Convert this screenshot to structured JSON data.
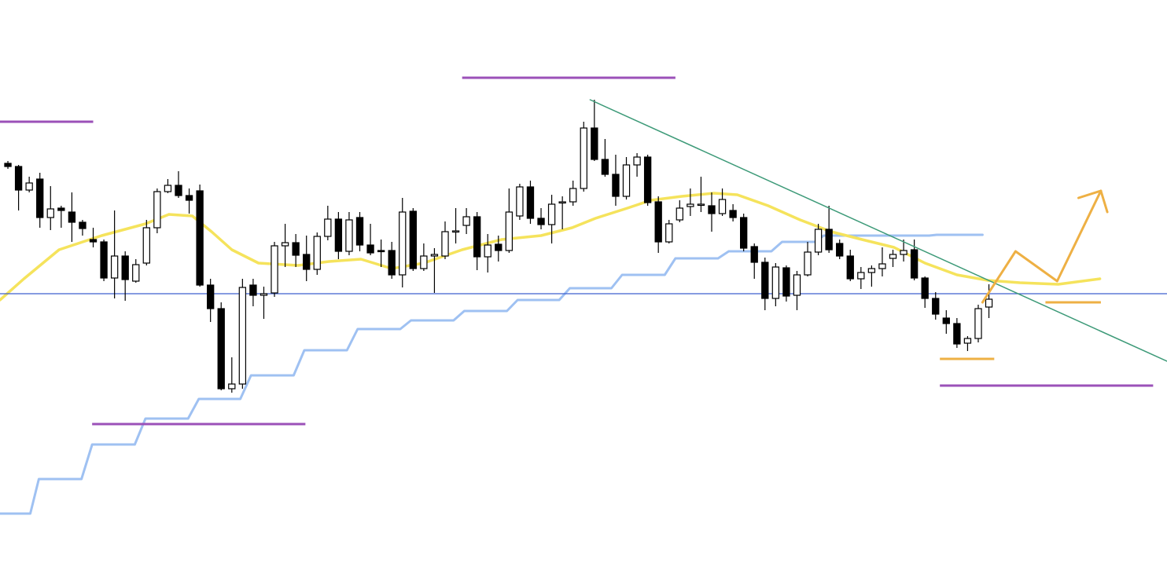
{
  "chart_data": {
    "type": "candlestick",
    "categories": [
      null,
      null,
      null,
      null,
      null,
      null,
      null,
      null,
      null,
      null,
      null,
      null,
      null,
      null,
      null,
      null,
      null,
      null,
      null,
      null,
      null,
      null,
      null,
      null,
      null,
      null,
      null,
      null,
      null,
      null,
      null,
      null,
      null,
      null,
      null,
      null,
      null,
      null,
      null,
      null,
      null,
      null,
      null,
      null,
      null,
      null,
      null,
      null,
      null,
      null,
      null,
      null,
      null,
      null,
      null,
      null,
      null,
      null,
      null,
      null,
      null,
      null,
      null,
      null,
      null,
      null,
      null,
      null,
      null,
      null,
      null,
      null,
      null,
      null,
      null,
      null,
      null,
      null,
      null,
      null,
      null,
      null,
      null,
      null,
      null,
      null,
      null,
      null,
      null,
      null,
      null,
      null,
      null
    ],
    "open": [
      151.4,
      151.0,
      148.0,
      149.4,
      144.5,
      145.7,
      145.2,
      143.9,
      141.7,
      141.4,
      136.8,
      139.6,
      136.4,
      138.7,
      143.2,
      147.8,
      148.6,
      147.3,
      147.9,
      135.9,
      132.9,
      122.7,
      123.3,
      135.9,
      134.6,
      134.9,
      140.9,
      141.3,
      139.8,
      137.9,
      142.1,
      144.3,
      140.2,
      144.5,
      141.0,
      140.3,
      140.3,
      137.2,
      145.3,
      138.0,
      139.6,
      139.6,
      142.7,
      143.5,
      144.6,
      139.5,
      141.1,
      140.3,
      144.7,
      148.4,
      144.4,
      143.6,
      146.4,
      146.5,
      148.2,
      155.9,
      151.9,
      150.0,
      147.2,
      151.2,
      152.2,
      146.5,
      141.4,
      144.2,
      145.9,
      146.1,
      146.0,
      145.0,
      145.4,
      144.5,
      140.8,
      138.8,
      134.2,
      138.1,
      134.6,
      137.2,
      140.1,
      143.0,
      141.2,
      139.6,
      136.7,
      137.5,
      138.0,
      139.3,
      139.8,
      140.4,
      136.8,
      134.2,
      131.7,
      131.0,
      128.5,
      129.1,
      133.1
    ],
    "high": [
      151.7,
      151.2,
      149.7,
      150.2,
      148.5,
      146.0,
      147.7,
      144.2,
      143.2,
      141.7,
      145.4,
      140.2,
      139.2,
      144.2,
      148.2,
      149.4,
      150.4,
      148.2,
      148.7,
      136.7,
      133.7,
      126.7,
      136.7,
      136.7,
      135.7,
      141.4,
      143.7,
      142.4,
      142.2,
      142.6,
      146.0,
      145.2,
      145.2,
      145.2,
      143.7,
      141.7,
      141.4,
      147.0,
      145.7,
      141.2,
      140.6,
      144.0,
      145.7,
      145.7,
      145.2,
      142.4,
      142.2,
      148.2,
      148.8,
      149.2,
      145.7,
      147.4,
      147.2,
      149.2,
      156.7,
      159.5,
      154.5,
      152.5,
      152.2,
      152.7,
      152.5,
      147.2,
      144.2,
      146.7,
      148.2,
      149.7,
      147.7,
      148.2,
      146.2,
      145.0,
      141.2,
      139.4,
      138.7,
      138.4,
      137.7,
      141.4,
      143.7,
      146.0,
      141.7,
      140.4,
      138.2,
      138.4,
      140.7,
      140.4,
      141.7,
      141.7,
      137.0,
      135.0,
      132.7,
      131.7,
      129.4,
      133.4,
      136.0
    ],
    "low": [
      150.7,
      145.4,
      147.7,
      143.2,
      142.9,
      143.2,
      141.4,
      142.2,
      140.7,
      136.4,
      134.2,
      133.9,
      136.2,
      138.4,
      142.5,
      147.6,
      147.0,
      145.0,
      135.7,
      131.2,
      122.5,
      122.2,
      122.7,
      133.2,
      131.6,
      134.4,
      138.2,
      138.2,
      136.4,
      137.2,
      141.6,
      139.2,
      139.7,
      140.2,
      139.7,
      138.2,
      136.7,
      135.6,
      137.7,
      137.7,
      134.9,
      139.2,
      141.2,
      142.4,
      137.8,
      137.5,
      138.9,
      140.0,
      144.2,
      143.7,
      143.0,
      141.2,
      143.0,
      146.0,
      147.8,
      151.7,
      149.7,
      146.0,
      146.8,
      149.7,
      146.0,
      140.0,
      141.2,
      143.9,
      144.7,
      145.2,
      142.7,
      144.7,
      144.0,
      140.2,
      136.7,
      132.7,
      133.2,
      133.8,
      132.7,
      137.0,
      139.7,
      140.0,
      139.2,
      136.4,
      135.4,
      135.7,
      137.0,
      138.2,
      138.9,
      136.5,
      133.0,
      131.5,
      129.7,
      127.9,
      127.5,
      128.6,
      131.7
    ],
    "close": [
      151.0,
      148.0,
      148.9,
      144.5,
      145.6,
      145.4,
      143.9,
      143.1,
      141.4,
      136.8,
      139.6,
      136.6,
      138.5,
      143.2,
      147.8,
      148.6,
      147.3,
      146.7,
      135.9,
      132.9,
      122.7,
      123.3,
      135.6,
      134.6,
      134.8,
      140.9,
      141.3,
      139.7,
      137.9,
      142.1,
      144.3,
      140.2,
      144.2,
      141.0,
      140.0,
      140.2,
      137.2,
      145.2,
      138.0,
      139.6,
      139.8,
      142.7,
      142.8,
      144.6,
      139.5,
      141.0,
      140.3,
      145.2,
      148.4,
      144.4,
      143.6,
      146.2,
      146.5,
      148.2,
      155.9,
      151.9,
      150.0,
      147.2,
      151.2,
      152.2,
      146.4,
      141.4,
      143.7,
      145.7,
      146.2,
      146.2,
      145.0,
      146.8,
      144.5,
      140.6,
      138.8,
      134.2,
      138.2,
      134.5,
      137.2,
      140.1,
      143.0,
      140.4,
      139.6,
      136.7,
      137.5,
      138.0,
      138.6,
      139.8,
      140.3,
      136.8,
      134.2,
      132.2,
      131.0,
      128.4,
      129.1,
      132.9,
      134.1
    ],
    "up_color": "#ffffff",
    "down_color": "#000000",
    "outline_color": "#000000",
    "xlim": [
      -0.74,
      108.7
    ],
    "ylim": [
      100,
      172.2
    ],
    "moving_average": {
      "color": "#f5e35c",
      "x": [
        -0.74,
        1.5,
        4.8,
        8.8,
        12.9,
        15.1,
        17.3,
        19.1,
        21.0,
        23.5,
        27.2,
        30.1,
        33.1,
        36.0,
        39.0,
        42.6,
        46.3,
        50.0,
        52.9,
        55.1,
        58.1,
        60.3,
        63.2,
        66.2,
        68.4,
        71.3,
        74.3,
        77.2,
        80.1,
        83.1,
        86.0,
        89.0,
        91.9,
        94.9,
        98.5,
        102.4
      ],
      "values": [
        134.0,
        136.7,
        140.4,
        142.2,
        143.7,
        144.9,
        144.7,
        142.7,
        140.4,
        138.7,
        138.4,
        138.9,
        139.2,
        138.0,
        138.7,
        140.4,
        141.7,
        142.2,
        143.2,
        144.4,
        145.7,
        146.7,
        147.2,
        147.6,
        147.4,
        146.0,
        144.2,
        142.7,
        141.7,
        140.7,
        138.7,
        137.2,
        136.5,
        136.2,
        136.0,
        136.7
      ]
    },
    "step_line": {
      "color": "#9fc1f2",
      "x": [
        -0.74,
        2.1,
        2.9,
        6.9,
        7.9,
        11.9,
        12.9,
        16.9,
        17.9,
        21.8,
        22.8,
        26.8,
        27.8,
        31.8,
        32.8,
        36.8,
        37.8,
        41.8,
        42.8,
        46.8,
        47.8,
        51.7,
        52.7,
        56.6,
        57.6,
        61.6,
        62.6,
        66.6,
        67.6,
        71.6,
        72.6,
        75.7,
        76.5,
        86.4,
        87.1,
        91.4
      ],
      "values": [
        106.8,
        106.8,
        111.2,
        111.2,
        115.6,
        115.6,
        118.9,
        118.9,
        121.4,
        121.4,
        124.4,
        124.4,
        127.6,
        127.6,
        130.3,
        130.3,
        131.4,
        131.4,
        132.6,
        132.6,
        134.0,
        134.0,
        135.5,
        135.5,
        137.2,
        137.2,
        139.3,
        139.3,
        140.2,
        140.2,
        141.4,
        141.4,
        142.2,
        142.2,
        142.3,
        142.3
      ]
    },
    "levels": [
      {
        "color": "#9b51b8",
        "value": 156.7,
        "xlim": [
          -0.74,
          8.0
        ]
      },
      {
        "color": "#9b51b8",
        "value": 162.3,
        "xlim": [
          42.6,
          62.6
        ]
      },
      {
        "color": "#9b51b8",
        "value": 118.2,
        "xlim": [
          7.9,
          27.9
        ]
      },
      {
        "color": "#9b51b8",
        "value": 123.1,
        "xlim": [
          87.4,
          107.4
        ]
      },
      {
        "color": "#eeb044",
        "value": 126.5,
        "xlim": [
          87.4,
          92.5
        ]
      },
      {
        "color": "#eeb044",
        "value": 133.7,
        "xlim": [
          97.3,
          102.5
        ]
      },
      {
        "color": "#3d5fcf",
        "value": 134.8,
        "xlim": [
          -0.74,
          108.7
        ]
      }
    ],
    "trend_line": {
      "color": "#3d9a78",
      "x": [
        54.6,
        108.7
      ],
      "values": [
        159.5,
        126.2
      ]
    },
    "projection": {
      "color": "#eeb044",
      "x": [
        91.4,
        94.5,
        98.4,
        102.5
      ],
      "values": [
        133.7,
        140.2,
        136.4,
        147.9
      ]
    },
    "arrowhead": {
      "color": "#eeb044",
      "x": [
        100.4,
        102.5,
        103.1
      ],
      "values": [
        147.0,
        147.9,
        145.2
      ]
    }
  }
}
